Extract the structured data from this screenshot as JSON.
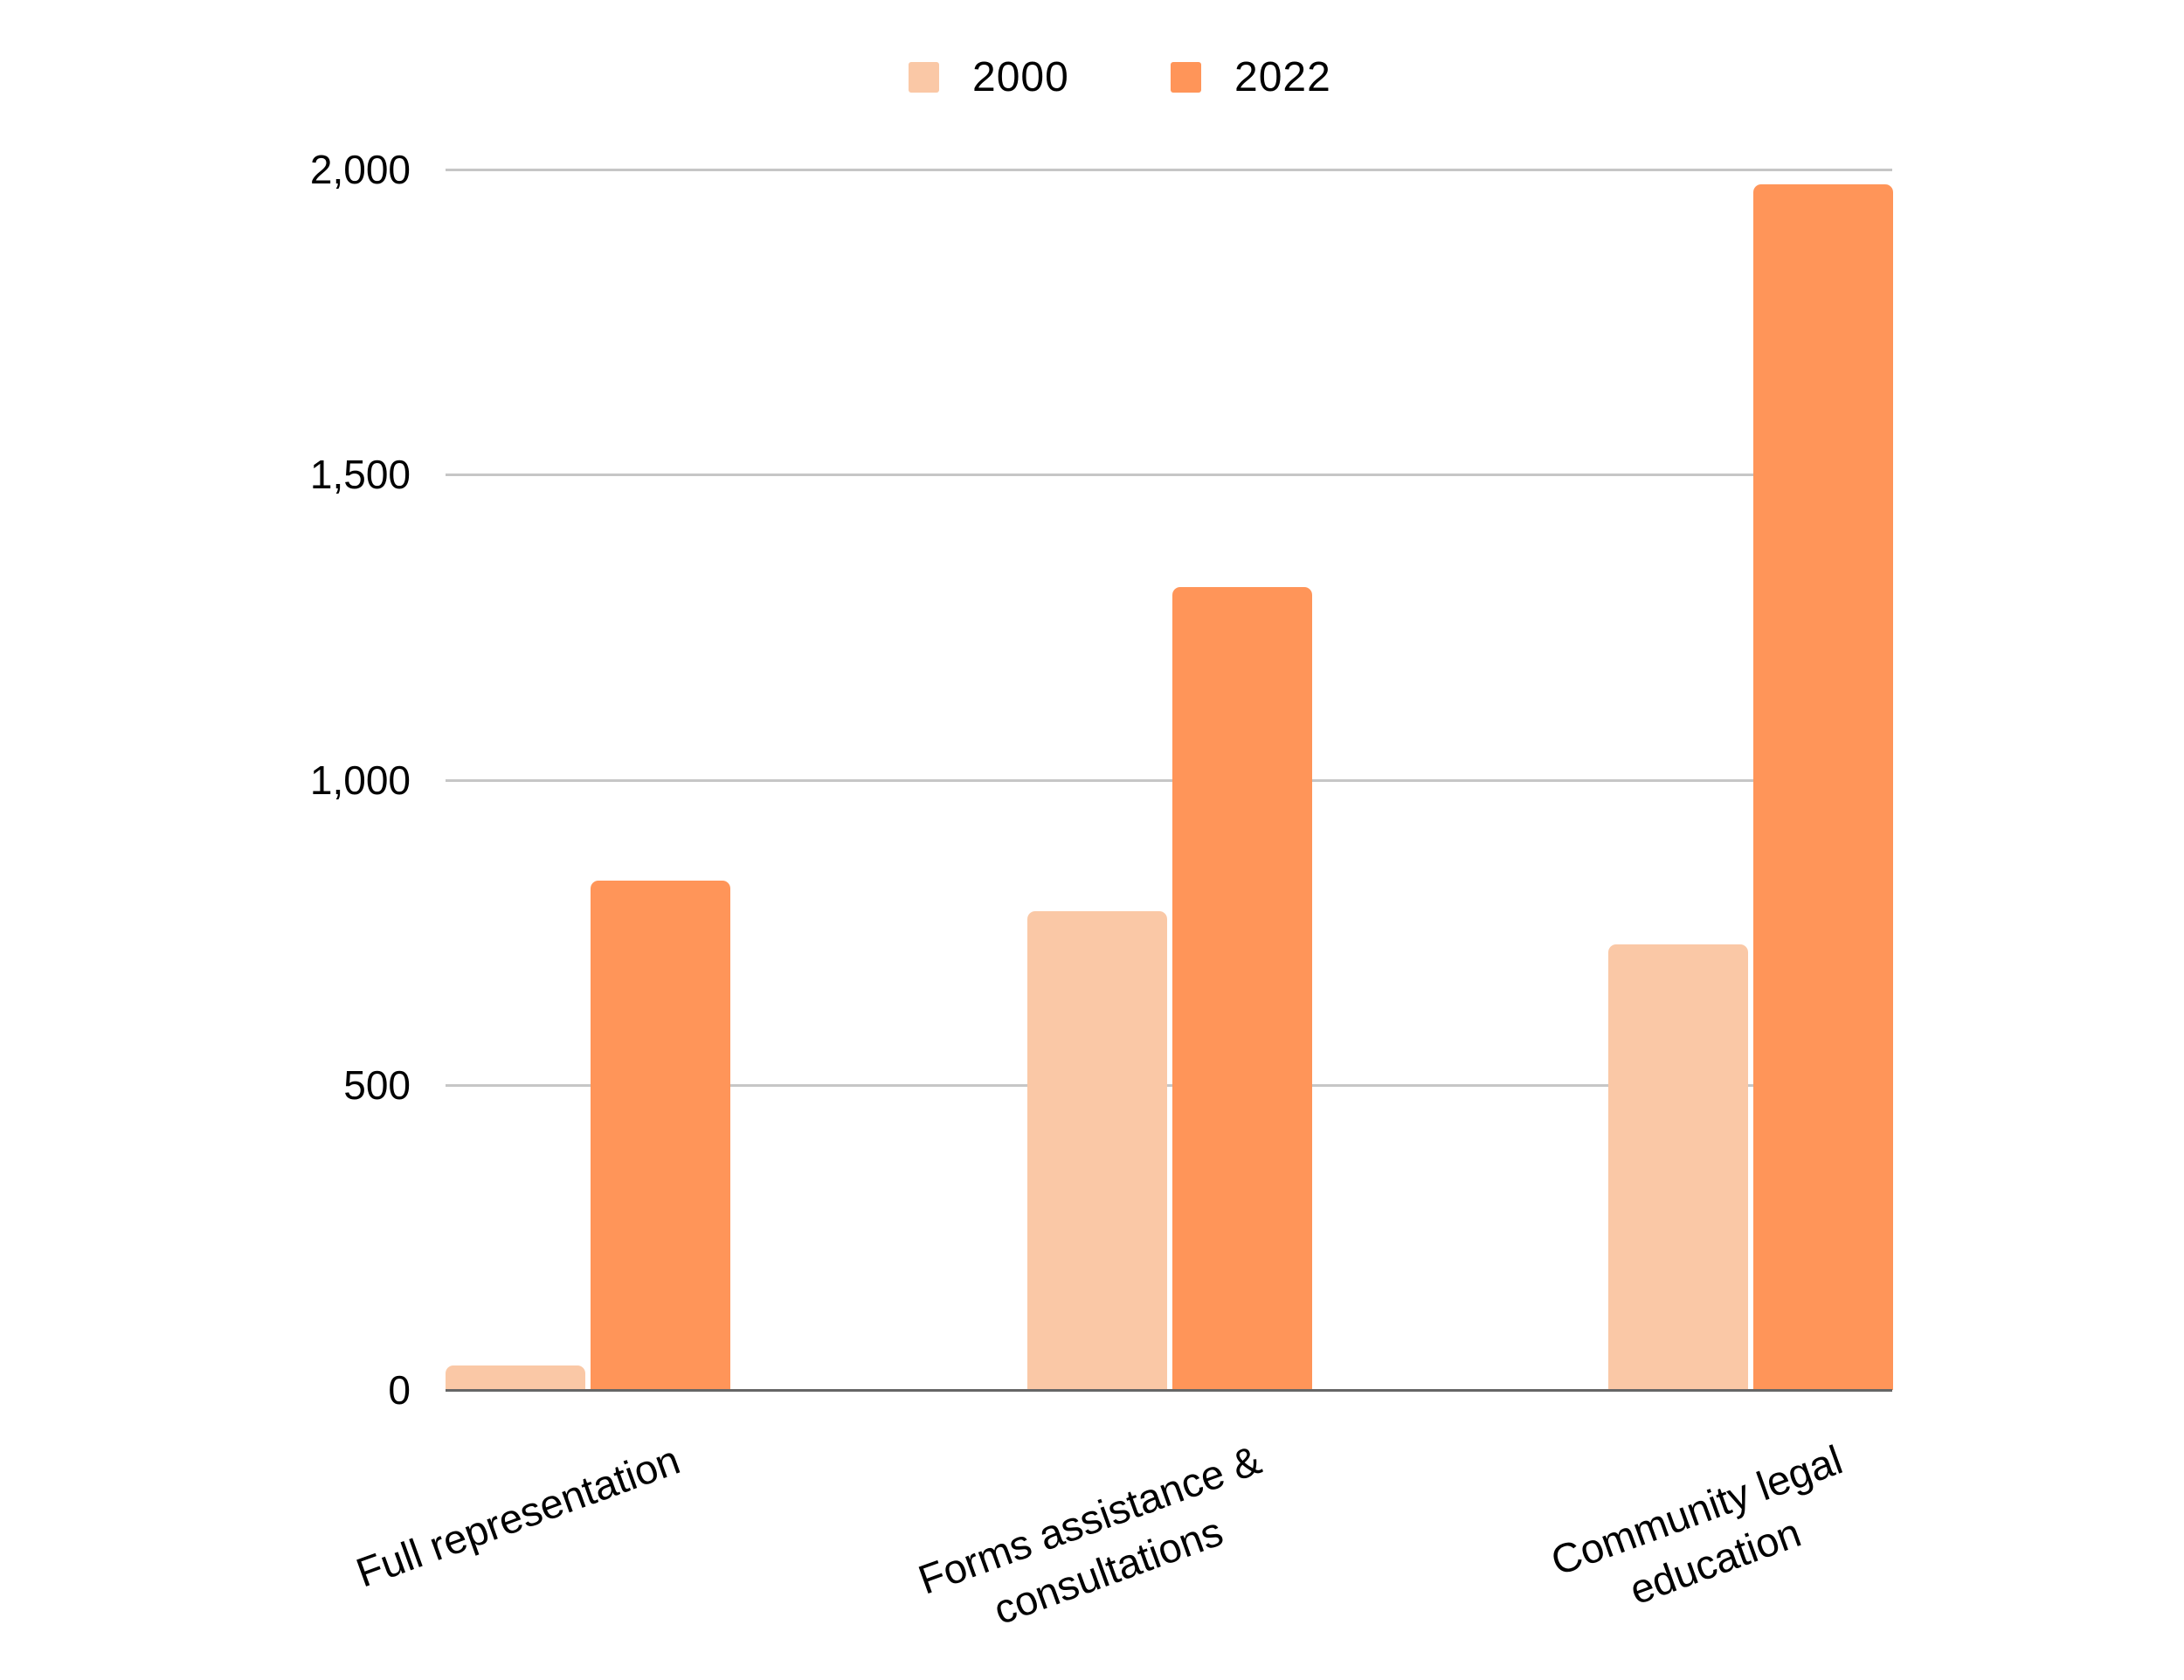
{
  "chart_data": {
    "type": "bar",
    "title": "",
    "xlabel": "",
    "ylabel": "",
    "categories": [
      "Full representation",
      "Forms assistance & consultations",
      "Community legal education"
    ],
    "category_lines": [
      [
        "Full representation"
      ],
      [
        "Forms assistance &",
        "consultations"
      ],
      [
        "Community legal",
        "education"
      ]
    ],
    "series": [
      {
        "name": "2000",
        "color": "#fac8a6",
        "values": [
          40,
          785,
          730
        ]
      },
      {
        "name": "2022",
        "color": "#ff9559",
        "values": [
          835,
          1315,
          1975
        ]
      }
    ],
    "ylim": [
      0,
      2000
    ],
    "yticks": [
      0,
      500,
      1000,
      1500,
      2000
    ],
    "ytick_labels": [
      "0",
      "500",
      "1,000",
      "1,500",
      "2,000"
    ],
    "grid": true,
    "legend_position": "top"
  },
  "legend": {
    "items": [
      {
        "label": "2000",
        "color": "#fac8a6"
      },
      {
        "label": "2022",
        "color": "#ff9559"
      }
    ]
  }
}
